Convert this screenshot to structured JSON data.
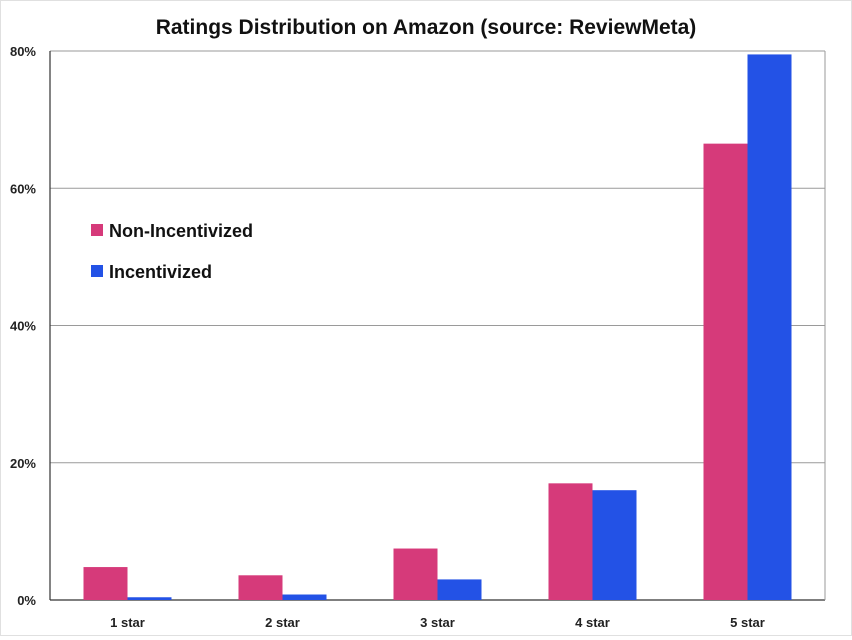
{
  "chart_data": {
    "type": "bar",
    "title": "Ratings Distribution on Amazon (source: ReviewMeta)",
    "categories": [
      "1 star",
      "2 star",
      "3 star",
      "4 star",
      "5 star"
    ],
    "series": [
      {
        "name": "Non-Incentivized",
        "color": "#d63a7a",
        "values": [
          4.8,
          3.6,
          7.5,
          17.0,
          66.5
        ]
      },
      {
        "name": "Incentivized",
        "color": "#2352e6",
        "values": [
          0.4,
          0.8,
          3.0,
          16.0,
          79.5
        ]
      }
    ],
    "ylim": [
      0,
      80
    ],
    "yticks": [
      0,
      20,
      40,
      60,
      80
    ],
    "ytick_labels": [
      "0%",
      "20%",
      "40%",
      "60%",
      "80%"
    ],
    "grid": true,
    "legend_position": "left-upper"
  }
}
